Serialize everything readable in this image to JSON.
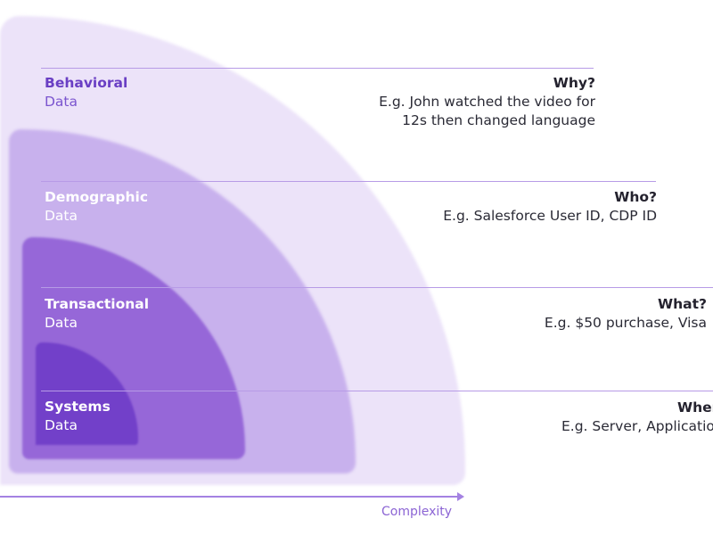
{
  "layers": [
    {
      "title": "Behavioral",
      "subtitle": "Data",
      "question": "Why?",
      "example_lines": [
        "E.g. John watched the video for",
        "12s then changed language"
      ]
    },
    {
      "title": "Demographic",
      "subtitle": "Data",
      "question": "Who?",
      "example_lines": [
        "E.g. Salesforce User ID, CDP ID"
      ]
    },
    {
      "title": "Transactional",
      "subtitle": "Data",
      "question": "What?",
      "example_lines": [
        "E.g. $50 purchase, Visa"
      ]
    },
    {
      "title": "Systems",
      "subtitle": "Data",
      "question": "When",
      "example_lines": [
        "E.g. Server, Applicatio"
      ]
    }
  ],
  "axis": {
    "label": "Complexity"
  },
  "colors": {
    "outer_layer": "#ece3f9",
    "second_layer": "#c8b1ed",
    "third_layer": "#9667d8",
    "inner_layer": "#7240c9",
    "accent_text": "#6a3fc4",
    "axis": "#a482e2"
  }
}
